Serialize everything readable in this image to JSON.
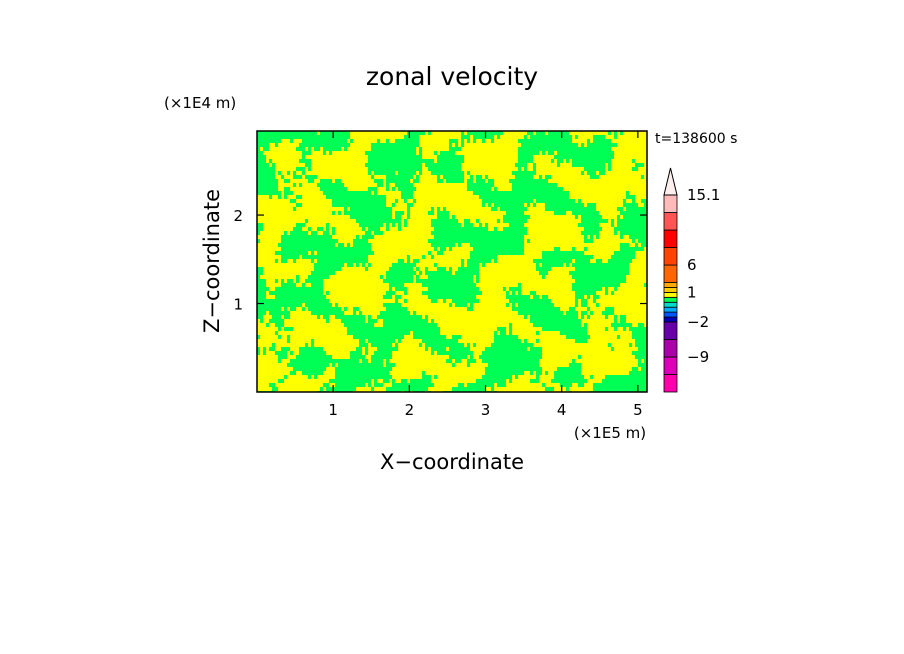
{
  "chart_data": {
    "type": "heatmap",
    "title": "zonal velocity",
    "xlabel": "X−coordinate",
    "ylabel": "Z−coordinate",
    "x_unit": "(×1E5 m)",
    "y_unit": "(×1E4 m)",
    "time_label": "t=138600 s",
    "xlim": [
      0,
      5.12
    ],
    "ylim": [
      0,
      2.95
    ],
    "x_ticks": [
      {
        "value": 1,
        "label": "1"
      },
      {
        "value": 2,
        "label": "2"
      },
      {
        "value": 3,
        "label": "3"
      },
      {
        "value": 4,
        "label": "4"
      },
      {
        "value": 5,
        "label": "5"
      }
    ],
    "y_ticks": [
      {
        "value": 1,
        "label": "1"
      },
      {
        "value": 2,
        "label": "2"
      }
    ],
    "field_colors": [
      "#ffff00",
      "#00ff55"
    ],
    "colorbar": {
      "levels": [
        -15.1,
        -12,
        -9,
        -6,
        -2,
        -1.5,
        -1,
        -0.5,
        0,
        0.5,
        1,
        1.5,
        2,
        6,
        8,
        10,
        12,
        15.1
      ],
      "colors": [
        "#ff00aa",
        "#dd00bb",
        "#aa00aa",
        "#6600aa",
        "#0000bb",
        "#0055ff",
        "#00aaff",
        "#00ddcc",
        "#00ff55",
        "#ffff00",
        "#ffcc00",
        "#ffaa00",
        "#ff6600",
        "#ff4400",
        "#ff0000",
        "#ff5555",
        "#ffbbbb"
      ],
      "extend_color": "#ffeeee",
      "labels": [
        {
          "value": 15.1,
          "label": "15.1"
        },
        {
          "value": 6,
          "label": "6"
        },
        {
          "value": 1,
          "label": "1"
        },
        {
          "value": -2,
          "label": "−2"
        },
        {
          "value": -9,
          "label": "−9"
        }
      ]
    }
  }
}
